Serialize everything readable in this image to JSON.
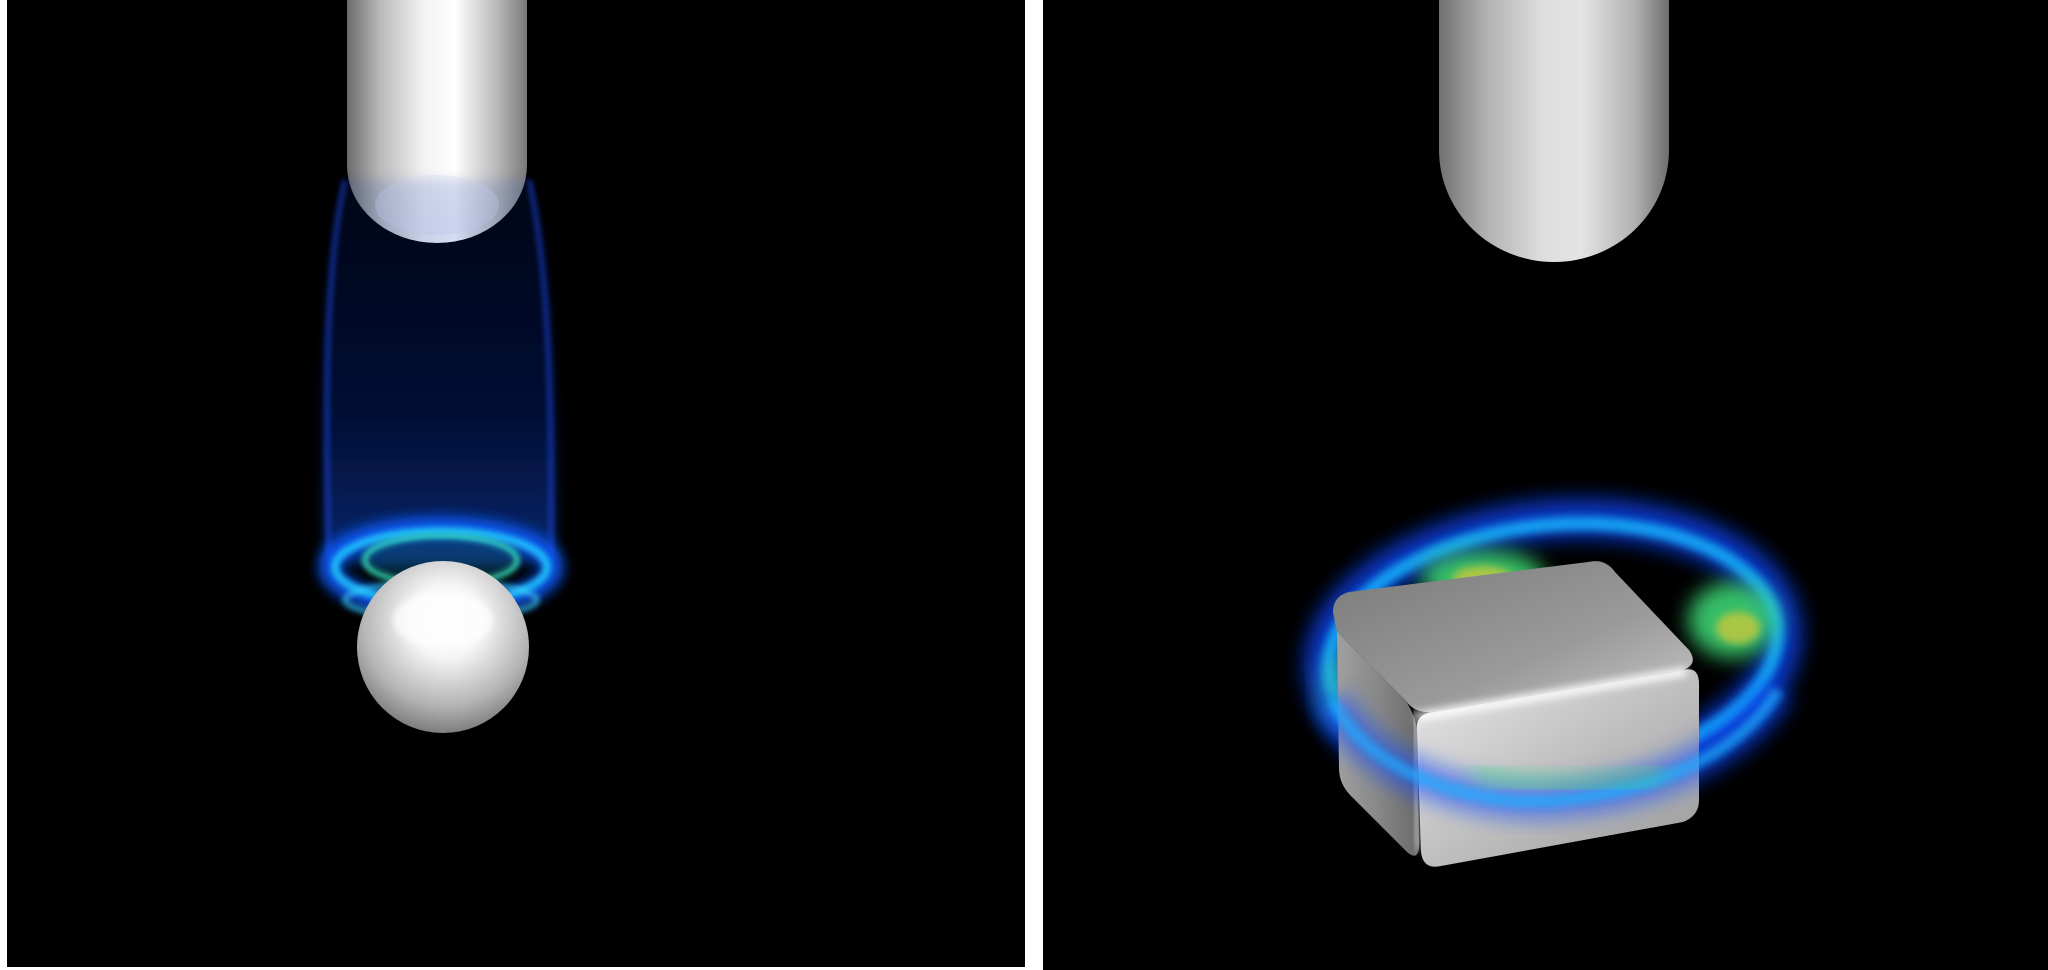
{
  "panels": [
    {
      "name": "left",
      "objects": [
        "capsule-rod",
        "sphere",
        "plasma-field"
      ]
    },
    {
      "name": "right",
      "objects": [
        "capsule-rod",
        "rounded-cube",
        "plasma-field"
      ]
    }
  ],
  "colors": {
    "background": "#000000",
    "separator": "#ffffff",
    "field_blue": "#0a46ff",
    "field_cyan": "#14c8ff",
    "field_green": "#3fe07a",
    "field_yellow": "#c8c83c",
    "metal_light": "#f4f4f4",
    "metal_dark": "#555555"
  }
}
